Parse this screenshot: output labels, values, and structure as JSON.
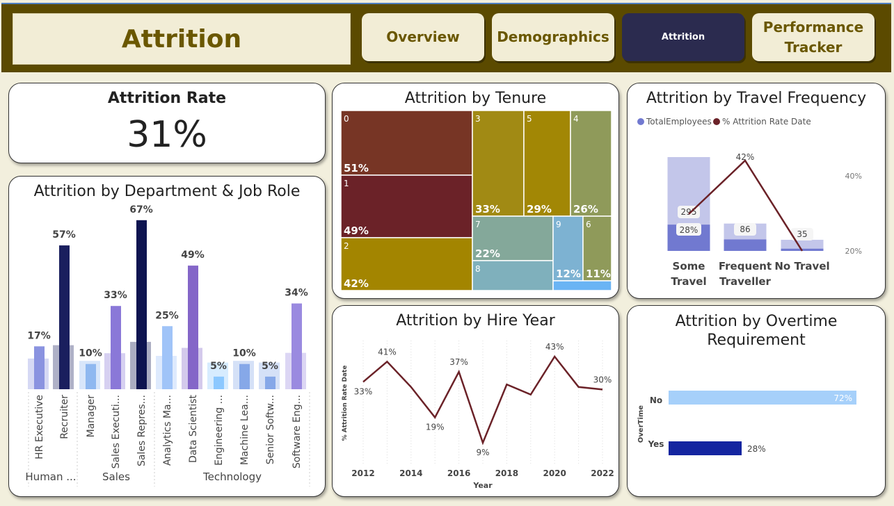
{
  "header": {
    "title": "Attrition",
    "nav": [
      "Overview",
      "Demographics",
      "Attrition",
      "Performance Tracker"
    ],
    "active": "Attrition"
  },
  "kpi": {
    "label": "Attrition Rate",
    "value": "31%"
  },
  "department_card": {
    "title": "Attrition by Department & Job Role"
  },
  "tenure_card": {
    "title": "Attrition by Tenure"
  },
  "travel_card": {
    "title": "Attrition by Travel Frequency",
    "legend": [
      "TotalEmployees",
      "% Attrition Rate Date"
    ]
  },
  "hire_card": {
    "title": "Attrition by Hire Year"
  },
  "overtime_card": {
    "title": "Attrition by Overtime Requirement"
  },
  "colors": {
    "header": "#5b4a00",
    "accent_text": "#6a5700",
    "active_nav": "#2b2b4f",
    "line": "#6b2228"
  },
  "chart_data": [
    {
      "id": "department",
      "type": "bar",
      "title": "Attrition by Department & Job Role",
      "categories": [
        "HR Executive",
        "Recruiter",
        "Manager",
        "Sales Executi...",
        "Sales Repres...",
        "Analytics Ma...",
        "Data Scientist",
        "Engineering ...",
        "Machine Lea...",
        "Senior Softw...",
        "Software Eng..."
      ],
      "groups": [
        {
          "label": "Human ...",
          "members": [
            "HR Executive",
            "Recruiter"
          ]
        },
        {
          "label": "Sales",
          "members": [
            "Manager",
            "Sales Executi...",
            "Sales Repres..."
          ]
        },
        {
          "label": "Technology",
          "members": [
            "Analytics Ma...",
            "Data Scientist",
            "Engineering ...",
            "Machine Lea...",
            "Senior Softw...",
            "Software Eng..."
          ]
        }
      ],
      "values": [
        17,
        57,
        10,
        33,
        67,
        25,
        49,
        5,
        10,
        5,
        34
      ],
      "value_labels": [
        "17%",
        "57%",
        "10%",
        "33%",
        "67%",
        "25%",
        "49%",
        "5%",
        "10%",
        "5%",
        "34%"
      ],
      "colors": [
        "#8a93e0",
        "#1a1f5e",
        "#8fb8f0",
        "#8a78d8",
        "#0e1450",
        "#a0c4f8",
        "#8466c8",
        "#8cc8ff",
        "#86a8e8",
        "#86a8e8",
        "#9a8ae0"
      ]
    },
    {
      "id": "tenure",
      "type": "treemap",
      "title": "Attrition by Tenure",
      "cells": [
        {
          "name": "0",
          "label": "51%",
          "color": "#773525"
        },
        {
          "name": "1",
          "label": "49%",
          "color": "#6b2228"
        },
        {
          "name": "2",
          "label": "42%",
          "color": "#a38500"
        },
        {
          "name": "3",
          "label": "33%",
          "color": "#a18a14"
        },
        {
          "name": "5",
          "label": "29%",
          "color": "#a28705"
        },
        {
          "name": "4",
          "label": "26%",
          "color": "#8f9a5a"
        },
        {
          "name": "7",
          "label": "22%",
          "color": "#84a89a"
        },
        {
          "name": "8",
          "label": "",
          "color": "#7fb0bc"
        },
        {
          "name": "9",
          "label": "12%",
          "color": "#7db2d2"
        },
        {
          "name": "6",
          "label": "11%",
          "color": "#8f9a5a"
        },
        {
          "name": "",
          "label": "",
          "color": "#6ab4f4"
        }
      ]
    },
    {
      "id": "travel",
      "type": "bar",
      "title": "Attrition by Travel Frequency",
      "categories": [
        "Some Travel",
        "Frequent Traveller",
        "No Travel"
      ],
      "series": [
        {
          "name": "TotalEmployees",
          "values": [
            295,
            86,
            35
          ],
          "labels": [
            "295",
            "86",
            "35"
          ]
        },
        {
          "name": "% Attrition Rate Date",
          "values": [
            28,
            42,
            20
          ],
          "labels": [
            "28%",
            "42%",
            ""
          ]
        }
      ],
      "secondary_ticks": [
        "40%",
        "20%"
      ]
    },
    {
      "id": "hire_year",
      "type": "line",
      "title": "Attrition by Hire Year",
      "xlabel": "Year",
      "ylabel": "% Attrition Rate Date",
      "x": [
        2012,
        2013,
        2014,
        2015,
        2016,
        2017,
        2018,
        2019,
        2020,
        2021,
        2022
      ],
      "values": [
        33,
        41,
        31,
        19,
        37,
        9,
        32,
        28,
        43,
        31,
        30
      ],
      "point_labels": [
        "33%",
        "41%",
        "",
        "19%",
        "37%",
        "9%",
        "",
        "",
        "43%",
        "",
        "30%"
      ],
      "x_ticks": [
        "2012",
        "2014",
        "2016",
        "2018",
        "2020",
        "2022"
      ]
    },
    {
      "id": "overtime",
      "type": "bar",
      "orientation": "horizontal",
      "title": "Attrition by Overtime Requirement",
      "ylabel": "OverTime",
      "categories": [
        "No",
        "Yes"
      ],
      "values": [
        72,
        28
      ],
      "value_labels": [
        "72%",
        "28%"
      ],
      "colors": [
        "#a6d0fa",
        "#1425a0"
      ]
    }
  ]
}
